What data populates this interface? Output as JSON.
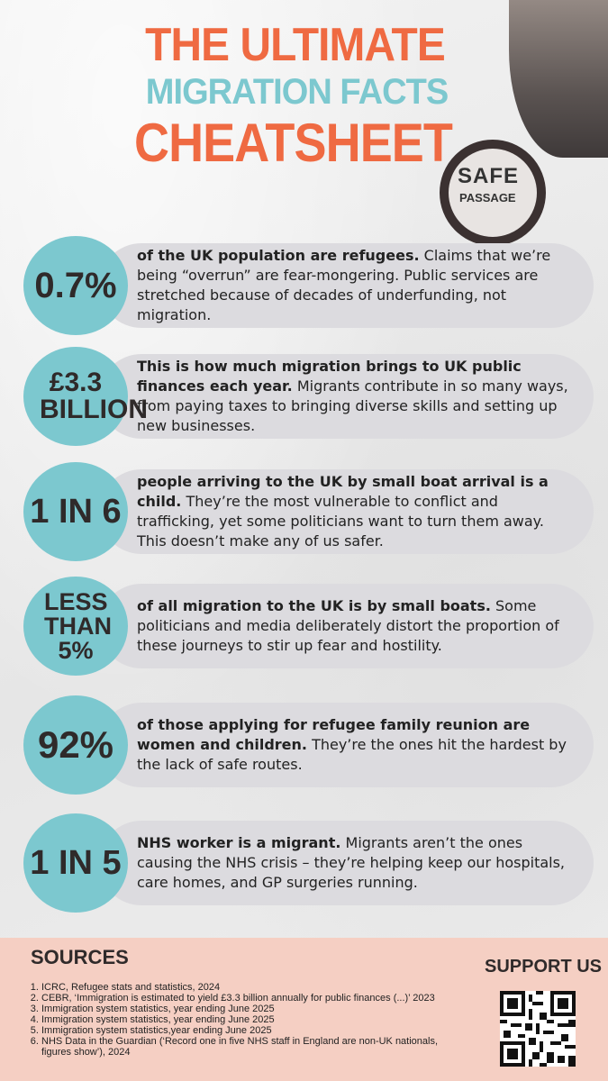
{
  "title": {
    "line1": "THE ULTIMATE",
    "line2": "MIGRATION FACTS",
    "line3": "CHEATSHEET"
  },
  "logo": {
    "line1": "SAFE",
    "line2": "PASSAGE"
  },
  "facts": [
    {
      "stat": "0.7%",
      "bold": "of the UK population are refugees.",
      "text": " Claims that we’re being “overrun” are fear-mongering. Public services are stretched because of decades of underfunding, not migration."
    },
    {
      "stat": "£3.3 BILLION",
      "bold": "This is how much migration brings to UK public finances each year.",
      "text": " Migrants contribute in so many ways, from paying taxes to bringing diverse skills and setting up new businesses."
    },
    {
      "stat": "1 IN 6",
      "bold": "people arriving to the UK by small boat arrival is a child.",
      "text": " They’re the most vulnerable to conflict and trafficking, yet some politicians want to turn them away. This doesn’t make any of us safer."
    },
    {
      "stat": "LESS THAN 5%",
      "bold": "of all migration to the UK is by small boats.",
      "text": " Some politicians and media deliberately distort the proportion of these journeys to stir up fear and hostility."
    },
    {
      "stat": "92%",
      "bold": "of those applying for refugee family reunion are women and children.",
      "text": " They’re the ones hit the hardest by the lack of safe routes."
    },
    {
      "stat": "1 IN 5",
      "bold": "NHS worker is a migrant.",
      "text": " Migrants aren’t the ones causing the NHS crisis – they’re helping keep our hospitals, care homes, and GP surgeries running."
    }
  ],
  "sources": {
    "title": "SOURCES",
    "items": [
      "ICRC, Refugee stats and statistics, 2024",
      "CEBR, ‘Immigration is estimated to yield £3.3 billion annually for public finances (...)’ 2023",
      "Immigration system statistics, year ending June 2025",
      "Immigration system statistics, year ending June 2025",
      "Immigration system statistics,year ending June 2025",
      "NHS Data in the Guardian (‘Record one in five NHS staff in England are non-UK nationals, figures show’), 2024"
    ]
  },
  "support": {
    "label": "SUPPORT US"
  },
  "colors": {
    "accent_orange": "#ef6a42",
    "accent_teal": "#7cc8cf",
    "pill_grey": "#dcdbdf",
    "footer_pink": "#f5cfc3"
  }
}
